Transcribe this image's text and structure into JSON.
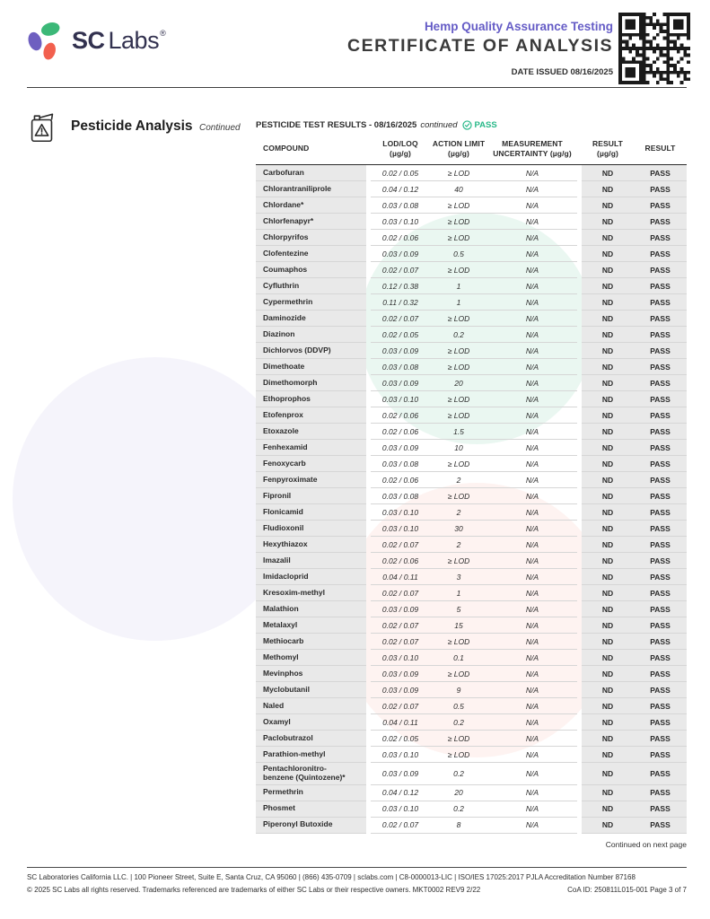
{
  "header": {
    "brand": {
      "sc": "SC",
      "labs": "Labs",
      "reg": "®"
    },
    "program": "Hemp Quality Assurance Testing",
    "doc_title": "CERTIFICATE OF ANALYSIS",
    "date_issued": "DATE ISSUED 08/16/2025"
  },
  "section": {
    "title": "Pesticide Analysis",
    "subtitle": "Continued"
  },
  "table": {
    "title": "PESTICIDE TEST RESULTS - 08/16/2025",
    "title_suffix": "continued",
    "status": "PASS",
    "columns": [
      {
        "l1": "COMPOUND",
        "l2": ""
      },
      {
        "l1": "LOD/LOQ",
        "l2": "(µg/g)"
      },
      {
        "l1": "ACTION LIMIT",
        "l2": "(µg/g)"
      },
      {
        "l1": "MEASUREMENT",
        "l2": "UNCERTAINTY (µg/g)"
      },
      {
        "l1": "RESULT",
        "l2": "(µg/g)"
      },
      {
        "l1": "RESULT",
        "l2": ""
      }
    ],
    "rows": [
      {
        "compound": "Carbofuran",
        "lod_loq": "0.02 / 0.05",
        "action_limit": "≥ LOD",
        "uncertainty": "N/A",
        "result": "ND",
        "status": "PASS"
      },
      {
        "compound": "Chlorantraniliprole",
        "lod_loq": "0.04 / 0.12",
        "action_limit": "40",
        "uncertainty": "N/A",
        "result": "ND",
        "status": "PASS"
      },
      {
        "compound": "Chlordane*",
        "lod_loq": "0.03 / 0.08",
        "action_limit": "≥ LOD",
        "uncertainty": "N/A",
        "result": "ND",
        "status": "PASS"
      },
      {
        "compound": "Chlorfenapyr*",
        "lod_loq": "0.03 / 0.10",
        "action_limit": "≥ LOD",
        "uncertainty": "N/A",
        "result": "ND",
        "status": "PASS"
      },
      {
        "compound": "Chlorpyrifos",
        "lod_loq": "0.02 / 0.06",
        "action_limit": "≥ LOD",
        "uncertainty": "N/A",
        "result": "ND",
        "status": "PASS"
      },
      {
        "compound": "Clofentezine",
        "lod_loq": "0.03 / 0.09",
        "action_limit": "0.5",
        "uncertainty": "N/A",
        "result": "ND",
        "status": "PASS"
      },
      {
        "compound": "Coumaphos",
        "lod_loq": "0.02 / 0.07",
        "action_limit": "≥ LOD",
        "uncertainty": "N/A",
        "result": "ND",
        "status": "PASS"
      },
      {
        "compound": "Cyfluthrin",
        "lod_loq": "0.12 / 0.38",
        "action_limit": "1",
        "uncertainty": "N/A",
        "result": "ND",
        "status": "PASS"
      },
      {
        "compound": "Cypermethrin",
        "lod_loq": "0.11 / 0.32",
        "action_limit": "1",
        "uncertainty": "N/A",
        "result": "ND",
        "status": "PASS"
      },
      {
        "compound": "Daminozide",
        "lod_loq": "0.02 / 0.07",
        "action_limit": "≥ LOD",
        "uncertainty": "N/A",
        "result": "ND",
        "status": "PASS"
      },
      {
        "compound": "Diazinon",
        "lod_loq": "0.02 / 0.05",
        "action_limit": "0.2",
        "uncertainty": "N/A",
        "result": "ND",
        "status": "PASS"
      },
      {
        "compound": "Dichlorvos (DDVP)",
        "lod_loq": "0.03 / 0.09",
        "action_limit": "≥ LOD",
        "uncertainty": "N/A",
        "result": "ND",
        "status": "PASS"
      },
      {
        "compound": "Dimethoate",
        "lod_loq": "0.03 / 0.08",
        "action_limit": "≥ LOD",
        "uncertainty": "N/A",
        "result": "ND",
        "status": "PASS"
      },
      {
        "compound": "Dimethomorph",
        "lod_loq": "0.03 / 0.09",
        "action_limit": "20",
        "uncertainty": "N/A",
        "result": "ND",
        "status": "PASS"
      },
      {
        "compound": "Ethoprophos",
        "lod_loq": "0.03 / 0.10",
        "action_limit": "≥ LOD",
        "uncertainty": "N/A",
        "result": "ND",
        "status": "PASS"
      },
      {
        "compound": "Etofenprox",
        "lod_loq": "0.02 / 0.06",
        "action_limit": "≥ LOD",
        "uncertainty": "N/A",
        "result": "ND",
        "status": "PASS"
      },
      {
        "compound": "Etoxazole",
        "lod_loq": "0.02 / 0.06",
        "action_limit": "1.5",
        "uncertainty": "N/A",
        "result": "ND",
        "status": "PASS"
      },
      {
        "compound": "Fenhexamid",
        "lod_loq": "0.03 / 0.09",
        "action_limit": "10",
        "uncertainty": "N/A",
        "result": "ND",
        "status": "PASS"
      },
      {
        "compound": "Fenoxycarb",
        "lod_loq": "0.03 / 0.08",
        "action_limit": "≥ LOD",
        "uncertainty": "N/A",
        "result": "ND",
        "status": "PASS"
      },
      {
        "compound": "Fenpyroximate",
        "lod_loq": "0.02 / 0.06",
        "action_limit": "2",
        "uncertainty": "N/A",
        "result": "ND",
        "status": "PASS"
      },
      {
        "compound": "Fipronil",
        "lod_loq": "0.03 / 0.08",
        "action_limit": "≥ LOD",
        "uncertainty": "N/A",
        "result": "ND",
        "status": "PASS"
      },
      {
        "compound": "Flonicamid",
        "lod_loq": "0.03 / 0.10",
        "action_limit": "2",
        "uncertainty": "N/A",
        "result": "ND",
        "status": "PASS"
      },
      {
        "compound": "Fludioxonil",
        "lod_loq": "0.03 / 0.10",
        "action_limit": "30",
        "uncertainty": "N/A",
        "result": "ND",
        "status": "PASS"
      },
      {
        "compound": "Hexythiazox",
        "lod_loq": "0.02 / 0.07",
        "action_limit": "2",
        "uncertainty": "N/A",
        "result": "ND",
        "status": "PASS"
      },
      {
        "compound": "Imazalil",
        "lod_loq": "0.02 / 0.06",
        "action_limit": "≥ LOD",
        "uncertainty": "N/A",
        "result": "ND",
        "status": "PASS"
      },
      {
        "compound": "Imidacloprid",
        "lod_loq": "0.04 / 0.11",
        "action_limit": "3",
        "uncertainty": "N/A",
        "result": "ND",
        "status": "PASS"
      },
      {
        "compound": "Kresoxim-methyl",
        "lod_loq": "0.02 / 0.07",
        "action_limit": "1",
        "uncertainty": "N/A",
        "result": "ND",
        "status": "PASS"
      },
      {
        "compound": "Malathion",
        "lod_loq": "0.03 / 0.09",
        "action_limit": "5",
        "uncertainty": "N/A",
        "result": "ND",
        "status": "PASS"
      },
      {
        "compound": "Metalaxyl",
        "lod_loq": "0.02 / 0.07",
        "action_limit": "15",
        "uncertainty": "N/A",
        "result": "ND",
        "status": "PASS"
      },
      {
        "compound": "Methiocarb",
        "lod_loq": "0.02 / 0.07",
        "action_limit": "≥ LOD",
        "uncertainty": "N/A",
        "result": "ND",
        "status": "PASS"
      },
      {
        "compound": "Methomyl",
        "lod_loq": "0.03 / 0.10",
        "action_limit": "0.1",
        "uncertainty": "N/A",
        "result": "ND",
        "status": "PASS"
      },
      {
        "compound": "Mevinphos",
        "lod_loq": "0.03 / 0.09",
        "action_limit": "≥ LOD",
        "uncertainty": "N/A",
        "result": "ND",
        "status": "PASS"
      },
      {
        "compound": "Myclobutanil",
        "lod_loq": "0.03 / 0.09",
        "action_limit": "9",
        "uncertainty": "N/A",
        "result": "ND",
        "status": "PASS"
      },
      {
        "compound": "Naled",
        "lod_loq": "0.02 / 0.07",
        "action_limit": "0.5",
        "uncertainty": "N/A",
        "result": "ND",
        "status": "PASS"
      },
      {
        "compound": "Oxamyl",
        "lod_loq": "0.04 / 0.11",
        "action_limit": "0.2",
        "uncertainty": "N/A",
        "result": "ND",
        "status": "PASS"
      },
      {
        "compound": "Paclobutrazol",
        "lod_loq": "0.02 / 0.05",
        "action_limit": "≥ LOD",
        "uncertainty": "N/A",
        "result": "ND",
        "status": "PASS"
      },
      {
        "compound": "Parathion-methyl",
        "lod_loq": "0.03 / 0.10",
        "action_limit": "≥ LOD",
        "uncertainty": "N/A",
        "result": "ND",
        "status": "PASS"
      },
      {
        "compound": "Pentachloronitro-benzene (Quintozene)*",
        "lod_loq": "0.03 / 0.09",
        "action_limit": "0.2",
        "uncertainty": "N/A",
        "result": "ND",
        "status": "PASS"
      },
      {
        "compound": "Permethrin",
        "lod_loq": "0.04 / 0.12",
        "action_limit": "20",
        "uncertainty": "N/A",
        "result": "ND",
        "status": "PASS"
      },
      {
        "compound": "Phosmet",
        "lod_loq": "0.03 / 0.10",
        "action_limit": "0.2",
        "uncertainty": "N/A",
        "result": "ND",
        "status": "PASS"
      },
      {
        "compound": "Piperonyl Butoxide",
        "lod_loq": "0.02 / 0.07",
        "action_limit": "8",
        "uncertainty": "N/A",
        "result": "ND",
        "status": "PASS"
      }
    ],
    "continued_note": "Continued on next page"
  },
  "footer": {
    "line1": "SC Laboratories California LLC. | 100 Pioneer Street, Suite E, Santa Cruz, CA 95060 | (866) 435-0709 | sclabs.com | C8-0000013-LIC | ISO/IES 17025:2017 PJLA Accreditation Number 87168",
    "line2_left": "© 2025 SC Labs all rights reserved. Trademarks referenced are trademarks of either SC Labs or their respective owners. MKT0002 REV9 2/22",
    "line2_right": "CoA ID: 250811L015-001  Page 3 of 7"
  },
  "colors": {
    "brand_green": "#3cb878",
    "brand_purple": "#6e5fc0",
    "brand_coral": "#f2604e",
    "accent_purple": "#655cc6",
    "pass_green": "#27b888",
    "cell_gray": "#e9e9e9"
  }
}
